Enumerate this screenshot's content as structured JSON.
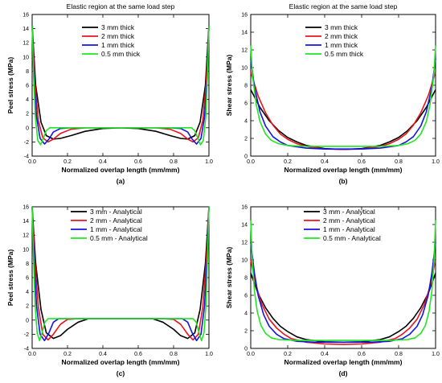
{
  "colors": {
    "s0": "#000000",
    "s1": "#e8141c",
    "s2": "#1414e0",
    "s3": "#22e622"
  },
  "chart_data": [
    {
      "id": "a",
      "type": "line",
      "caption": "(a)",
      "title": "Elastic region at the same load step",
      "xlabel": "Normalized overlap length (mm/mm)",
      "ylabel": "Peel stress (MPa)",
      "xlim": [
        0,
        1
      ],
      "ylim": [
        -4,
        16
      ],
      "xticks": [
        "0.0",
        "0.2",
        "0.4",
        "0.6",
        "0.8",
        "1.0"
      ],
      "yticks": [
        "-4",
        "-2",
        "0",
        "2",
        "4",
        "6",
        "8",
        "10",
        "12",
        "14",
        "16"
      ],
      "legend": "top-center",
      "series": [
        {
          "name": "3 mm thick",
          "x": [
            0,
            0.02,
            0.05,
            0.08,
            0.12,
            0.16,
            0.22,
            0.3,
            0.4,
            0.5,
            0.6,
            0.7,
            0.78,
            0.84,
            0.88,
            0.92,
            0.95,
            0.98,
            1.0
          ],
          "y": [
            14.5,
            6.0,
            0.8,
            -1.1,
            -1.6,
            -1.5,
            -1.1,
            -0.5,
            -0.1,
            0.0,
            -0.1,
            -0.5,
            -1.1,
            -1.5,
            -1.6,
            -1.1,
            0.8,
            6.0,
            14.5
          ]
        },
        {
          "name": "2 mm thick",
          "x": [
            0,
            0.015,
            0.035,
            0.06,
            0.09,
            0.12,
            0.16,
            0.22,
            0.3,
            0.5,
            0.7,
            0.78,
            0.84,
            0.88,
            0.91,
            0.94,
            0.965,
            0.985,
            1.0
          ],
          "y": [
            14.0,
            6.5,
            1.0,
            -1.4,
            -2.0,
            -1.6,
            -0.8,
            -0.2,
            0.0,
            0.0,
            0.0,
            -0.2,
            -0.8,
            -1.6,
            -2.0,
            -1.4,
            1.0,
            6.5,
            14.0
          ]
        },
        {
          "name": "1 mm thick",
          "x": [
            0,
            0.01,
            0.025,
            0.045,
            0.07,
            0.095,
            0.12,
            0.16,
            0.22,
            0.5,
            0.78,
            0.84,
            0.88,
            0.905,
            0.93,
            0.955,
            0.975,
            0.99,
            1.0
          ],
          "y": [
            14.5,
            7.0,
            1.5,
            -1.5,
            -2.3,
            -1.6,
            -0.6,
            -0.1,
            0.0,
            0.0,
            0.0,
            -0.1,
            -0.6,
            -1.6,
            -2.3,
            -1.5,
            1.5,
            7.0,
            14.5
          ]
        },
        {
          "name": "0.5 mm thick",
          "x": [
            0,
            0.008,
            0.018,
            0.032,
            0.048,
            0.064,
            0.08,
            0.1,
            0.14,
            0.5,
            0.86,
            0.9,
            0.92,
            0.936,
            0.952,
            0.968,
            0.982,
            0.992,
            1.0
          ],
          "y": [
            14.5,
            7.5,
            1.5,
            -1.8,
            -2.4,
            -1.4,
            -0.4,
            0.0,
            0.0,
            0.0,
            0.0,
            0.0,
            -0.4,
            -1.4,
            -2.4,
            -1.8,
            1.5,
            7.5,
            14.5
          ]
        }
      ]
    },
    {
      "id": "b",
      "type": "line",
      "caption": "(b)",
      "title": "Elastic region at the same load step",
      "xlabel": "Normalized overlap length (mm/mm)",
      "ylabel": "Shear stress (MPa)",
      "xlim": [
        0,
        1
      ],
      "ylim": [
        0,
        16
      ],
      "xticks": [
        "0.0",
        "0.2",
        "0.4",
        "0.6",
        "0.8",
        "1.0"
      ],
      "yticks": [
        "0",
        "2",
        "4",
        "6",
        "8",
        "10",
        "12",
        "14",
        "16"
      ],
      "legend": "top-center",
      "series": [
        {
          "name": "3 mm thick",
          "x": [
            0,
            0.05,
            0.1,
            0.15,
            0.2,
            0.25,
            0.3,
            0.4,
            0.5,
            0.6,
            0.7,
            0.75,
            0.8,
            0.85,
            0.9,
            0.95,
            1.0
          ],
          "y": [
            7.5,
            5.5,
            4.0,
            2.9,
            2.1,
            1.6,
            1.2,
            0.85,
            0.75,
            0.85,
            1.2,
            1.6,
            2.1,
            2.9,
            4.0,
            5.5,
            7.5
          ]
        },
        {
          "name": "2 mm thick",
          "x": [
            0,
            0.04,
            0.08,
            0.12,
            0.16,
            0.2,
            0.25,
            0.3,
            0.4,
            0.5,
            0.6,
            0.7,
            0.75,
            0.8,
            0.84,
            0.88,
            0.92,
            0.96,
            1.0
          ],
          "y": [
            9.5,
            6.8,
            4.9,
            3.5,
            2.5,
            1.9,
            1.4,
            1.1,
            0.8,
            0.75,
            0.8,
            1.1,
            1.4,
            1.9,
            2.5,
            3.5,
            4.9,
            6.8,
            9.5
          ]
        },
        {
          "name": "1 mm thick",
          "x": [
            0,
            0.02,
            0.05,
            0.08,
            0.12,
            0.16,
            0.2,
            0.3,
            0.4,
            0.5,
            0.6,
            0.7,
            0.8,
            0.84,
            0.88,
            0.92,
            0.95,
            0.98,
            1.0
          ],
          "y": [
            11.0,
            7.8,
            5.0,
            3.4,
            2.2,
            1.6,
            1.2,
            0.9,
            0.8,
            0.8,
            0.8,
            0.9,
            1.2,
            1.6,
            2.2,
            3.4,
            5.0,
            7.8,
            11.0
          ]
        },
        {
          "name": "0.5 mm thick",
          "x": [
            0,
            0.01,
            0.03,
            0.05,
            0.08,
            0.11,
            0.15,
            0.2,
            0.3,
            0.5,
            0.7,
            0.8,
            0.85,
            0.89,
            0.92,
            0.95,
            0.97,
            0.99,
            1.0
          ],
          "y": [
            12.5,
            9.0,
            5.8,
            3.9,
            2.5,
            1.8,
            1.4,
            1.2,
            1.1,
            1.1,
            1.1,
            1.2,
            1.4,
            1.8,
            2.5,
            3.9,
            5.8,
            9.0,
            12.5
          ]
        }
      ]
    },
    {
      "id": "c",
      "type": "line",
      "caption": "(c)",
      "title": "",
      "xlabel": "Normalized overlap length (mm/mm)",
      "ylabel": "Peel stress (MPa)",
      "xlim": [
        0,
        1
      ],
      "ylim": [
        -4,
        16
      ],
      "xticks": [
        "0.0",
        "0.2",
        "0.4",
        "0.6",
        "0.8",
        "1.0"
      ],
      "yticks": [
        "-4",
        "-2",
        "0",
        "2",
        "4",
        "6",
        "8",
        "10",
        "12",
        "14",
        "16"
      ],
      "legend": "top-center",
      "series": [
        {
          "name": "3 mm - Analytical",
          "x": [
            0,
            0.02,
            0.05,
            0.08,
            0.12,
            0.16,
            0.2,
            0.26,
            0.32,
            0.4,
            0.5,
            0.6,
            0.68,
            0.74,
            0.8,
            0.84,
            0.88,
            0.92,
            0.95,
            0.98,
            1.0
          ],
          "y": [
            16.0,
            8.0,
            1.5,
            -1.8,
            -2.6,
            -2.2,
            -1.3,
            -0.3,
            0.2,
            0.2,
            0.2,
            0.2,
            0.2,
            -0.3,
            -1.3,
            -2.2,
            -2.6,
            -1.8,
            1.5,
            8.0,
            16.0
          ]
        },
        {
          "name": "2 mm - Analytical",
          "x": [
            0,
            0.015,
            0.035,
            0.06,
            0.09,
            0.12,
            0.16,
            0.2,
            0.26,
            0.5,
            0.74,
            0.8,
            0.84,
            0.88,
            0.91,
            0.94,
            0.965,
            0.985,
            1.0
          ],
          "y": [
            16.0,
            8.5,
            1.8,
            -2.0,
            -2.8,
            -2.0,
            -0.6,
            0.1,
            0.2,
            0.2,
            0.2,
            0.1,
            -0.6,
            -2.0,
            -2.8,
            -2.0,
            1.8,
            8.5,
            16.0
          ]
        },
        {
          "name": "1 mm - Analytical",
          "x": [
            0,
            0.01,
            0.025,
            0.045,
            0.07,
            0.095,
            0.12,
            0.15,
            0.2,
            0.5,
            0.8,
            0.85,
            0.88,
            0.905,
            0.93,
            0.955,
            0.975,
            0.99,
            1.0
          ],
          "y": [
            16.0,
            9.0,
            2.0,
            -2.0,
            -2.9,
            -1.8,
            -0.3,
            0.2,
            0.2,
            0.2,
            0.2,
            0.2,
            -0.3,
            -1.8,
            -2.9,
            -2.0,
            2.0,
            9.0,
            16.0
          ]
        },
        {
          "name": "0.5 mm - Analytical",
          "x": [
            0,
            0.007,
            0.016,
            0.028,
            0.042,
            0.056,
            0.072,
            0.09,
            0.12,
            0.5,
            0.88,
            0.91,
            0.928,
            0.944,
            0.958,
            0.972,
            0.984,
            0.993,
            1.0
          ],
          "y": [
            16.0,
            9.5,
            2.5,
            -1.8,
            -2.9,
            -1.8,
            -0.3,
            0.2,
            0.2,
            0.2,
            0.2,
            0.2,
            -0.3,
            -1.8,
            -2.9,
            -1.8,
            2.5,
            9.5,
            16.0
          ]
        }
      ]
    },
    {
      "id": "d",
      "type": "line",
      "caption": "(d)",
      "title": "",
      "xlabel": "Normalized overlap length (mm/mm)",
      "ylabel": "Shear stress (MPa)",
      "xlim": [
        0,
        1
      ],
      "ylim": [
        0,
        16
      ],
      "xticks": [
        "0.0",
        "0.2",
        "0.4",
        "0.6",
        "0.8",
        "1.0"
      ],
      "yticks": [
        "0",
        "2",
        "4",
        "6",
        "8",
        "10",
        "12",
        "14",
        "16"
      ],
      "legend": "top-center",
      "series": [
        {
          "name": "3 mm - Analytical",
          "x": [
            0,
            0.04,
            0.08,
            0.12,
            0.16,
            0.2,
            0.25,
            0.3,
            0.4,
            0.5,
            0.6,
            0.7,
            0.75,
            0.8,
            0.84,
            0.88,
            0.92,
            0.96,
            1.0
          ],
          "y": [
            8.5,
            6.2,
            4.6,
            3.4,
            2.5,
            1.9,
            1.3,
            1.0,
            0.75,
            0.7,
            0.75,
            1.0,
            1.3,
            1.9,
            2.5,
            3.4,
            4.6,
            6.2,
            8.5
          ]
        },
        {
          "name": "2 mm - Analytical",
          "x": [
            0,
            0.03,
            0.06,
            0.1,
            0.14,
            0.18,
            0.22,
            0.3,
            0.4,
            0.5,
            0.6,
            0.7,
            0.78,
            0.82,
            0.86,
            0.9,
            0.94,
            0.97,
            1.0
          ],
          "y": [
            10.0,
            7.0,
            5.0,
            3.3,
            2.3,
            1.6,
            1.1,
            0.7,
            0.5,
            0.45,
            0.5,
            0.7,
            1.1,
            1.6,
            2.3,
            3.3,
            5.0,
            7.0,
            10.0
          ]
        },
        {
          "name": "1 mm - Analytical",
          "x": [
            0,
            0.02,
            0.04,
            0.07,
            0.1,
            0.14,
            0.18,
            0.25,
            0.35,
            0.5,
            0.65,
            0.75,
            0.82,
            0.86,
            0.9,
            0.93,
            0.96,
            0.98,
            1.0
          ],
          "y": [
            12.0,
            8.5,
            6.0,
            3.8,
            2.5,
            1.6,
            1.1,
            0.8,
            0.7,
            0.7,
            0.7,
            0.8,
            1.1,
            1.6,
            2.5,
            3.8,
            6.0,
            8.5,
            12.0
          ]
        },
        {
          "name": "0.5 mm - Analytical",
          "x": [
            0,
            0.008,
            0.02,
            0.035,
            0.055,
            0.08,
            0.11,
            0.15,
            0.25,
            0.5,
            0.75,
            0.85,
            0.89,
            0.92,
            0.945,
            0.965,
            0.98,
            0.992,
            1.0
          ],
          "y": [
            14.5,
            10.0,
            6.5,
            4.2,
            2.6,
            1.7,
            1.2,
            1.0,
            0.9,
            0.9,
            0.9,
            1.0,
            1.2,
            1.7,
            2.6,
            4.2,
            6.5,
            10.0,
            14.5
          ]
        }
      ]
    }
  ]
}
